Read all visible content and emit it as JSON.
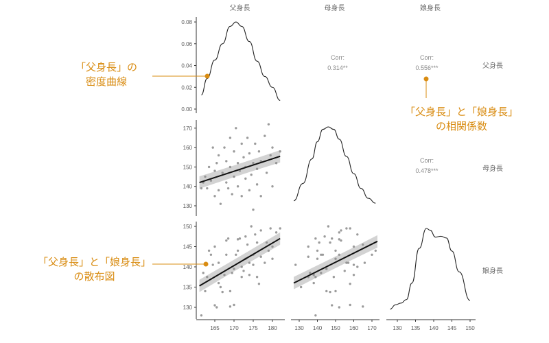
{
  "colors": {
    "annotation": "#d98c12",
    "point": "#8a8a8a",
    "band": "#c8c8c8",
    "line": "#111111"
  },
  "chart_data": {
    "type": "scatter",
    "variables": [
      "父身長",
      "母身長",
      "娘身長"
    ],
    "observations": [
      [
        161.5,
        139,
        128
      ],
      [
        162,
        142,
        138.5
      ],
      [
        162.5,
        145,
        134
      ],
      [
        163,
        139,
        137.5
      ],
      [
        163.5,
        150,
        144
      ],
      [
        164,
        143,
        143
      ],
      [
        164.5,
        160,
        140.5
      ],
      [
        165,
        135,
        145
      ],
      [
        165,
        148,
        130.5
      ],
      [
        165.5,
        152,
        130
      ],
      [
        166,
        138,
        136
      ],
      [
        166,
        156,
        141
      ],
      [
        166.5,
        131,
        135
      ],
      [
        167,
        147,
        133.8
      ],
      [
        167.5,
        160,
        138
      ],
      [
        168,
        142,
        143
      ],
      [
        168,
        153,
        146.5
      ],
      [
        168.5,
        139,
        147
      ],
      [
        169,
        150,
        134
      ],
      [
        169,
        165,
        130.2
      ],
      [
        169.5,
        136,
        138.5
      ],
      [
        170,
        145,
        139.5
      ],
      [
        170,
        158,
        130.6
      ],
      [
        170.5,
        170,
        143
      ],
      [
        171,
        140,
        144
      ],
      [
        171,
        152,
        146.8
      ],
      [
        171.5,
        148,
        147
      ],
      [
        172,
        162,
        140
      ],
      [
        172,
        135,
        137.5
      ],
      [
        172.5,
        155,
        139
      ],
      [
        173,
        144,
        147.5
      ],
      [
        173,
        150,
        142
      ],
      [
        173.5,
        165,
        145.5
      ],
      [
        174,
        138,
        138
      ],
      [
        174,
        157,
        141
      ],
      [
        174.5,
        146,
        150
      ],
      [
        175,
        152,
        143
      ],
      [
        175,
        128,
        140.5
      ],
      [
        175.5,
        162,
        148
      ],
      [
        176,
        149,
        137.5
      ],
      [
        176,
        141,
        146
      ],
      [
        176.5,
        158,
        135.8
      ],
      [
        177,
        135,
        142.5
      ],
      [
        177,
        153,
        149
      ],
      [
        178,
        166,
        141
      ],
      [
        178.5,
        147,
        146
      ],
      [
        179,
        172,
        144
      ],
      [
        179.5,
        156,
        149.5
      ],
      [
        180,
        140,
        142
      ],
      [
        180,
        160,
        145
      ],
      [
        181,
        152,
        148.5
      ],
      [
        182,
        158,
        149.5
      ]
    ],
    "densities": [
      {
        "name": "父身長",
        "x": [
          161.5,
          163,
          165,
          167,
          169,
          170.5,
          172,
          174,
          176,
          178,
          180,
          182
        ],
        "y": [
          0.013,
          0.028,
          0.045,
          0.06,
          0.076,
          0.08,
          0.076,
          0.062,
          0.044,
          0.03,
          0.02,
          0.008
        ]
      },
      {
        "name": "母身長",
        "x": [
          127,
          132,
          137,
          140,
          143,
          146,
          149,
          152,
          156,
          160,
          164,
          168,
          172
        ],
        "y": [
          0.004,
          0.011,
          0.021,
          0.028,
          0.033,
          0.034,
          0.033,
          0.029,
          0.022,
          0.015,
          0.009,
          0.005,
          0.003
        ]
      },
      {
        "name": "娘身長",
        "x": [
          128,
          129.5,
          131,
          132.5,
          134,
          136,
          138,
          139,
          140.5,
          142,
          143.5,
          145,
          147,
          150
        ],
        "y": [
          0.005,
          0.01,
          0.012,
          0.016,
          0.035,
          0.075,
          0.098,
          0.096,
          0.088,
          0.089,
          0.087,
          0.072,
          0.048,
          0.015
        ]
      }
    ],
    "regressions": [
      {
        "x": "父身長",
        "y": "母身長",
        "x0": 161,
        "y0": 142,
        "x1": 182,
        "y1": 155.5
      },
      {
        "x": "父身長",
        "y": "娘身長",
        "x0": 161,
        "y0": 135.3,
        "x1": 182,
        "y1": 147
      },
      {
        "x": "母身長",
        "y": "娘身長",
        "x0": 127,
        "y0": 136,
        "x1": 173,
        "y1": 146.3
      }
    ],
    "correlations": [
      {
        "label": "Corr:",
        "value": "0.314**",
        "pair": "父身長-母身長"
      },
      {
        "label": "Corr:",
        "value": "0.556***",
        "pair": "父身長-娘身長"
      },
      {
        "label": "Corr:",
        "value": "0.478***",
        "pair": "母身長-娘身長"
      }
    ],
    "x_ticks": [
      [
        165,
        170,
        175,
        180
      ],
      [
        130,
        140,
        150,
        160,
        170
      ],
      [
        130,
        135,
        140,
        145,
        150
      ]
    ],
    "y_ticks_density": [
      "0.00",
      "0.02",
      "0.04",
      "0.06",
      "0.08"
    ],
    "y_ticks": [
      [],
      [
        130,
        140,
        150,
        160,
        170
      ],
      [
        130,
        135,
        140,
        145,
        150
      ]
    ],
    "grid": false
  },
  "annotations": {
    "density": [
      "「父身長」の",
      "密度曲線"
    ],
    "corr": [
      "「父身長」と「娘身長」",
      "の相関係数"
    ],
    "scatter": [
      "「父身長」と「娘身長」",
      "の散布図"
    ]
  }
}
